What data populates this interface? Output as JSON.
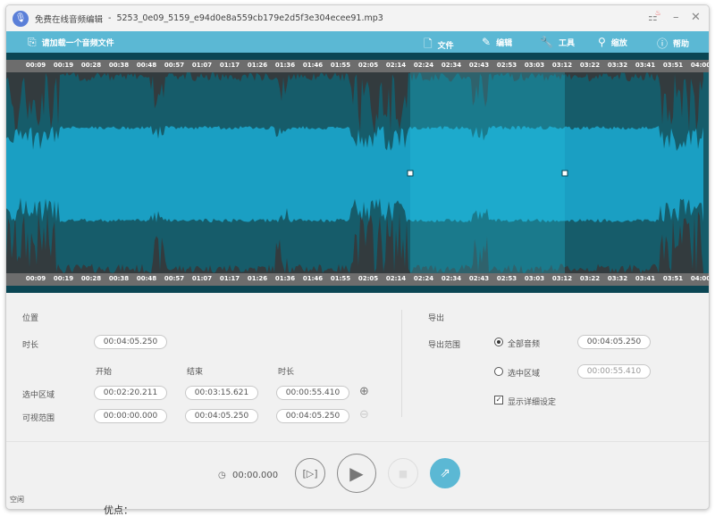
{
  "title_bar": {
    "app_name": "免费在线音频编辑",
    "separator": "-",
    "file_name": "5253_0e09_5159_e94d0e8a559cb179e2d5f3e304ecee91.mp3"
  },
  "toolbar": {
    "load_label": "请加载一个音频文件",
    "file": "文件",
    "edit": "编辑",
    "tools": "工具",
    "zoom": "缩放",
    "help": "帮助"
  },
  "timeline": {
    "ticks": [
      "00:09",
      "00:19",
      "00:28",
      "00:38",
      "00:48",
      "00:57",
      "01:07",
      "01:17",
      "01:26",
      "01:36",
      "01:46",
      "01:55",
      "02:05",
      "02:14",
      "02:24",
      "02:34",
      "02:43",
      "02:53",
      "03:03",
      "03:12",
      "03:22",
      "03:32",
      "03:41",
      "03:51",
      "04:00"
    ]
  },
  "position": {
    "heading": "位置",
    "duration_label": "时长",
    "duration": "00:04:05.250",
    "col_start": "开始",
    "col_end": "结束",
    "col_duration": "时长",
    "selection_label": "选中区域",
    "selection": {
      "start": "00:02:20.211",
      "end": "00:03:15.621",
      "duration": "00:00:55.410"
    },
    "visible_label": "可视范围",
    "visible": {
      "start": "00:00:00.000",
      "end": "00:04:05.250",
      "duration": "00:04:05.250"
    }
  },
  "export": {
    "heading": "导出",
    "range_label": "导出范围",
    "all_label": "全部音频",
    "all_value": "00:04:05.250",
    "all_selected": true,
    "sel_label": "选中区域",
    "sel_value": "00:00:55.410",
    "details_label": "显示详细设定",
    "details_checked": true
  },
  "playback": {
    "time": "00:00.000"
  },
  "status": "空闲",
  "below_text": "优点：",
  "colors": {
    "toolbar": "#5bb8d4",
    "wave": "#1a9fc3",
    "export_button": "#5bb8d4"
  }
}
